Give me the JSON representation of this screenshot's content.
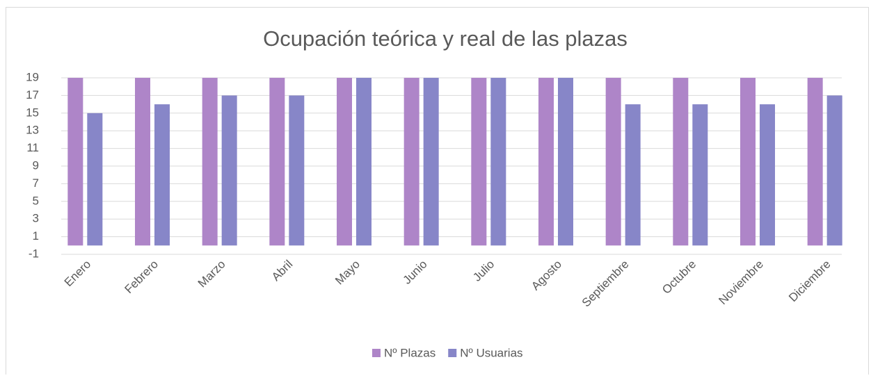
{
  "chart_data": {
    "type": "bar",
    "title": "Ocupación teórica y real de las plazas",
    "categories": [
      "Enero",
      "Febrero",
      "Marzo",
      "Abril",
      "Mayo",
      "Junio",
      "Julio",
      "Agosto",
      "Septiembre",
      "Octubre",
      "Noviembre",
      "Diciembre"
    ],
    "series": [
      {
        "name": "Nº Plazas",
        "color": "#ae85c8",
        "values": [
          19,
          19,
          19,
          19,
          19,
          19,
          19,
          19,
          19,
          19,
          19,
          19
        ]
      },
      {
        "name": "Nº Usuarias",
        "color": "#8786c8",
        "values": [
          15,
          16,
          17,
          17,
          19,
          19,
          19,
          19,
          16,
          16,
          16,
          17
        ]
      }
    ],
    "ylim": [
      -1,
      19
    ],
    "yticks": [
      -1,
      1,
      3,
      5,
      7,
      9,
      11,
      13,
      15,
      17,
      19
    ],
    "grid": true,
    "legend": "bottom"
  }
}
